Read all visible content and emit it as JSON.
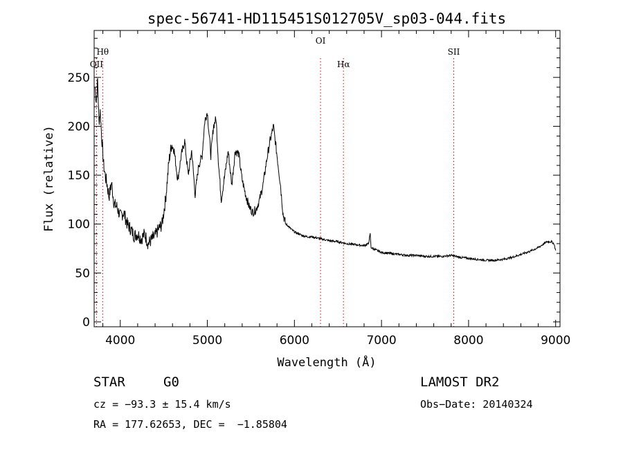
{
  "chart_data": {
    "type": "line",
    "title": "spec-56741-HD115451S012705V_sp03-044.fits",
    "xlabel": "Wavelength (Å)",
    "ylabel": "Flux (relative)",
    "xlim": [
      3700,
      9050
    ],
    "ylim": [
      -5,
      298
    ],
    "x_ticks": [
      4000,
      5000,
      6000,
      7000,
      8000,
      9000
    ],
    "y_ticks": [
      0,
      50,
      100,
      150,
      200,
      250
    ],
    "line_color": "#000000",
    "marker_color": "#cc0000",
    "series": [
      {
        "x": [
          3710,
          3725,
          3740,
          3755,
          3770,
          3790,
          3810,
          3830,
          3850,
          3870,
          3900,
          3930,
          3960,
          4000,
          4040,
          4080,
          4120,
          4160,
          4200,
          4240,
          4280,
          4320,
          4360,
          4400,
          4440,
          4480,
          4520,
          4560,
          4590,
          4620,
          4660,
          4700,
          4740,
          4780,
          4820,
          4860,
          4900,
          4940,
          4970,
          5000,
          5040,
          5070,
          5100,
          5130,
          5160,
          5200,
          5240,
          5280,
          5320,
          5360,
          5400,
          5440,
          5480,
          5520,
          5560,
          5600,
          5640,
          5680,
          5720,
          5760,
          5800,
          5840,
          5870,
          5900,
          5930,
          5960,
          6000,
          6050,
          6100,
          6150,
          6200,
          6300,
          6400,
          6500,
          6600,
          6700,
          6800,
          6850,
          6870,
          6880,
          6900,
          6950,
          7000,
          7100,
          7200,
          7300,
          7400,
          7500,
          7600,
          7700,
          7800,
          7850,
          7900,
          8000,
          8100,
          8200,
          8300,
          8400,
          8500,
          8600,
          8700,
          8800,
          8850,
          8900,
          8950,
          8980,
          9000
        ],
        "y": [
          240,
          225,
          248,
          205,
          215,
          185,
          160,
          148,
          140,
          128,
          142,
          120,
          118,
          108,
          112,
          100,
          95,
          88,
          90,
          85,
          90,
          80,
          84,
          88,
          95,
          100,
          125,
          165,
          182,
          175,
          145,
          170,
          185,
          150,
          175,
          130,
          160,
          170,
          205,
          215,
          170,
          200,
          208,
          160,
          125,
          150,
          175,
          140,
          175,
          172,
          145,
          130,
          118,
          112,
          115,
          125,
          140,
          165,
          185,
          200,
          170,
          140,
          110,
          100,
          98,
          95,
          92,
          90,
          88,
          87,
          87,
          85,
          83,
          82,
          80,
          79,
          78,
          80,
          90,
          76,
          75,
          73,
          71,
          70,
          69,
          68,
          68,
          67,
          67,
          67,
          68,
          67,
          66,
          65,
          64,
          63,
          63,
          64,
          66,
          69,
          72,
          76,
          79,
          82,
          82,
          80,
          73
        ]
      }
    ],
    "lines": [
      {
        "label": "OII",
        "x": 3727
      },
      {
        "label": "Hθ",
        "x": 3798
      },
      {
        "label": "OI",
        "x": 6300
      },
      {
        "label": "Hα",
        "x": 6563
      },
      {
        "label": "SII",
        "x": 7830
      }
    ]
  },
  "info": {
    "class_label": "STAR",
    "subclass": "G0",
    "survey": "LAMOST DR2",
    "cz": "cz = −93.3 ± 15.4 km/s",
    "obs_date": "Obs−Date: 20140324",
    "coords": "RA = 177.62653, DEC =  −1.85804"
  }
}
